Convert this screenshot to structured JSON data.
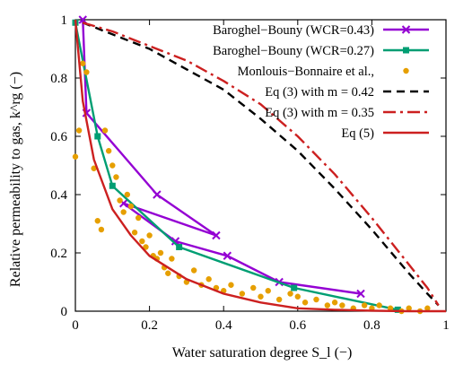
{
  "chart_data": {
    "type": "line",
    "xlabel": "Water saturation degree S_l (−)",
    "ylabel": "Relative permeability to gas, k^rg (−)",
    "xlim": [
      0,
      1
    ],
    "ylim": [
      0,
      1.0
    ],
    "x_ticks": [
      "0",
      "0.2",
      "0.4",
      "0.6",
      "0.8",
      "1"
    ],
    "y_ticks": [
      "0",
      "0.2",
      "0.4",
      "0.6",
      "0.8",
      "1"
    ],
    "grid": false,
    "legend_position": "top-right",
    "series": [
      {
        "name": "Baroghel−Bouny (WCR=0.43)",
        "style": "line-x-markers",
        "color": "#9400d3",
        "x": [
          0.02,
          0.03,
          0.22,
          0.38,
          0.13,
          0.27,
          0.41,
          0.55,
          0.77
        ],
        "y": [
          1.0,
          0.68,
          0.4,
          0.26,
          0.37,
          0.24,
          0.19,
          0.1,
          0.06
        ]
      },
      {
        "name": "Baroghel−Bouny (WCR=0.27)",
        "style": "line-square-markers",
        "color": "#009e73",
        "x": [
          0.0,
          0.06,
          0.1,
          0.28,
          0.59,
          0.87
        ],
        "y": [
          0.99,
          0.6,
          0.43,
          0.22,
          0.08,
          0.005
        ]
      },
      {
        "name": "Monlouis−Bonnaire et al.,",
        "style": "dots",
        "color": "#e69f00",
        "x": [
          0.0,
          0.01,
          0.02,
          0.03,
          0.05,
          0.06,
          0.07,
          0.08,
          0.09,
          0.1,
          0.11,
          0.12,
          0.13,
          0.14,
          0.15,
          0.16,
          0.17,
          0.18,
          0.19,
          0.2,
          0.21,
          0.22,
          0.23,
          0.24,
          0.25,
          0.26,
          0.28,
          0.3,
          0.32,
          0.34,
          0.36,
          0.38,
          0.4,
          0.42,
          0.45,
          0.48,
          0.5,
          0.52,
          0.55,
          0.58,
          0.6,
          0.62,
          0.65,
          0.68,
          0.7,
          0.72,
          0.75,
          0.78,
          0.8,
          0.82,
          0.85,
          0.88,
          0.9,
          0.93,
          0.95
        ],
        "y": [
          0.53,
          0.62,
          0.85,
          0.82,
          0.49,
          0.31,
          0.28,
          0.62,
          0.55,
          0.5,
          0.46,
          0.38,
          0.34,
          0.4,
          0.36,
          0.27,
          0.32,
          0.24,
          0.22,
          0.26,
          0.19,
          0.18,
          0.2,
          0.15,
          0.13,
          0.18,
          0.12,
          0.1,
          0.14,
          0.09,
          0.11,
          0.08,
          0.07,
          0.09,
          0.06,
          0.08,
          0.05,
          0.07,
          0.04,
          0.06,
          0.05,
          0.03,
          0.04,
          0.02,
          0.03,
          0.02,
          0.01,
          0.02,
          0.01,
          0.02,
          0.01,
          0.0,
          0.01,
          0.0,
          0.01
        ]
      },
      {
        "name": "Eq (3) with m = 0.42",
        "style": "dashed",
        "color": "#000000",
        "x": [
          0.02,
          0.1,
          0.2,
          0.3,
          0.4,
          0.5,
          0.6,
          0.7,
          0.8,
          0.9,
          0.95,
          0.98
        ],
        "y": [
          0.99,
          0.95,
          0.9,
          0.83,
          0.76,
          0.66,
          0.55,
          0.42,
          0.28,
          0.13,
          0.06,
          0.02
        ]
      },
      {
        "name": "Eq (3) with m = 0.35",
        "style": "dash-dot",
        "color": "#cc2020",
        "x": [
          0.02,
          0.1,
          0.2,
          0.3,
          0.4,
          0.5,
          0.6,
          0.7,
          0.8,
          0.9,
          0.95,
          0.98
        ],
        "y": [
          0.99,
          0.96,
          0.91,
          0.86,
          0.79,
          0.71,
          0.6,
          0.47,
          0.32,
          0.16,
          0.08,
          0.02
        ]
      },
      {
        "name": "Eq (5)",
        "style": "solid",
        "color": "#cc2020",
        "x": [
          0.0,
          0.02,
          0.05,
          0.1,
          0.15,
          0.2,
          0.3,
          0.4,
          0.5,
          0.6,
          0.7,
          0.8,
          0.9,
          1.0
        ],
        "y": [
          1.0,
          0.72,
          0.52,
          0.35,
          0.26,
          0.19,
          0.11,
          0.06,
          0.03,
          0.01,
          0.005,
          0.002,
          0.0,
          0.0
        ]
      }
    ]
  }
}
